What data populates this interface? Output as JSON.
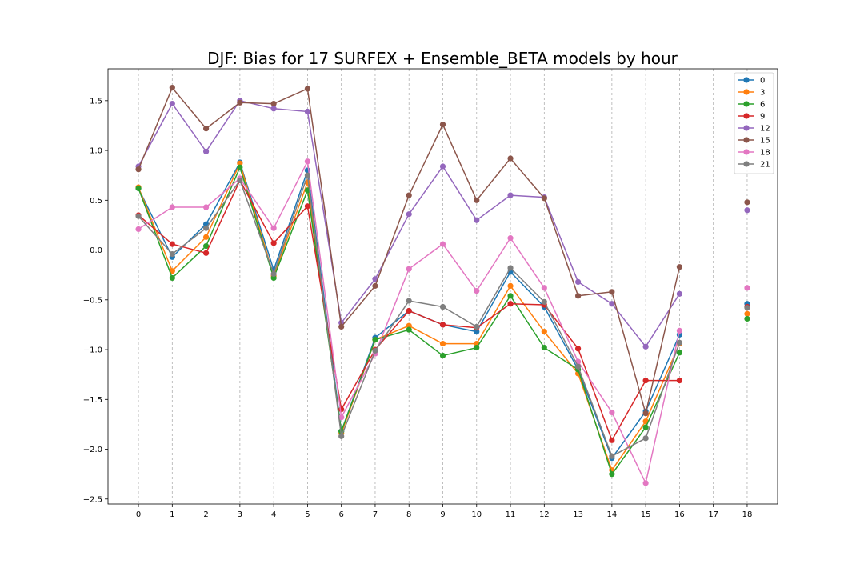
{
  "chart_data": {
    "type": "line",
    "title": "DJF: Bias for 17 SURFEX + Ensemble_BETA models by hour",
    "xlabel": "",
    "ylabel": "",
    "x": [
      0,
      1,
      2,
      3,
      4,
      5,
      6,
      7,
      8,
      9,
      10,
      11,
      12,
      13,
      14,
      15,
      16,
      17,
      18
    ],
    "x_ticks": [
      "0",
      "1",
      "2",
      "3",
      "4",
      "5",
      "6",
      "7",
      "8",
      "9",
      "10",
      "11",
      "12",
      "13",
      "14",
      "15",
      "16",
      "17",
      "18"
    ],
    "y_ticks": [
      "1.5",
      "1.0",
      "0.5",
      "0.0",
      "−0.5",
      "−1.0",
      "−1.5",
      "−2.0",
      "−2.5"
    ],
    "y_tick_values": [
      1.5,
      1.0,
      0.5,
      0.0,
      -0.5,
      -1.0,
      -1.5,
      -2.0,
      -2.5
    ],
    "xlim": [
      -0.9,
      18.9
    ],
    "ylim": [
      -2.55,
      1.82
    ],
    "grid": "vertical dashed",
    "legend_position": "top-right",
    "series": [
      {
        "name": "0",
        "color": "#1f77b4",
        "values": [
          0.62,
          -0.07,
          0.26,
          0.88,
          -0.2,
          0.8,
          -1.82,
          -0.88,
          -0.61,
          -0.75,
          -0.82,
          -0.22,
          -0.57,
          -1.2,
          -2.09,
          -1.62,
          -0.85,
          null,
          -0.54
        ]
      },
      {
        "name": "3",
        "color": "#ff7f0e",
        "values": [
          0.63,
          -0.21,
          0.13,
          0.87,
          -0.26,
          0.68,
          -1.84,
          -0.9,
          -0.76,
          -0.94,
          -0.94,
          -0.36,
          -0.82,
          -1.24,
          -2.21,
          -1.72,
          -0.94,
          null,
          -0.64
        ]
      },
      {
        "name": "6",
        "color": "#2ca02c",
        "values": [
          0.62,
          -0.28,
          0.04,
          0.83,
          -0.28,
          0.6,
          -1.82,
          -0.9,
          -0.8,
          -1.06,
          -0.98,
          -0.46,
          -0.98,
          -1.2,
          -2.25,
          -1.78,
          -1.03,
          null,
          -0.69
        ]
      },
      {
        "name": "9",
        "color": "#d62728",
        "values": [
          0.35,
          0.06,
          -0.03,
          0.7,
          0.07,
          0.44,
          -1.6,
          -1.0,
          -0.61,
          -0.75,
          -0.78,
          -0.54,
          -0.55,
          -0.99,
          -1.91,
          -1.31,
          -1.31,
          null,
          -0.57
        ]
      },
      {
        "name": "12",
        "color": "#9467bd",
        "values": [
          0.84,
          1.47,
          0.99,
          1.5,
          1.42,
          1.39,
          -0.73,
          -0.29,
          0.36,
          0.84,
          0.3,
          0.55,
          0.53,
          -0.32,
          -0.54,
          -0.97,
          -0.44,
          null,
          0.4
        ]
      },
      {
        "name": "15",
        "color": "#8c564b",
        "values": [
          0.81,
          1.63,
          1.22,
          1.48,
          1.47,
          1.62,
          -0.77,
          -0.36,
          0.55,
          1.26,
          0.5,
          0.92,
          0.52,
          -0.46,
          -0.42,
          -1.64,
          -0.17,
          null,
          0.48
        ]
      },
      {
        "name": "18",
        "color": "#e377c2",
        "values": [
          0.21,
          0.43,
          0.43,
          0.72,
          0.22,
          0.89,
          -1.68,
          -1.04,
          -0.19,
          0.06,
          -0.41,
          0.12,
          -0.38,
          -1.12,
          -1.63,
          -2.34,
          -0.81,
          null,
          -0.38
        ]
      },
      {
        "name": "21",
        "color": "#7f7f7f",
        "values": [
          0.34,
          -0.04,
          0.22,
          0.7,
          -0.24,
          0.75,
          -1.87,
          -1.01,
          -0.51,
          -0.57,
          -0.77,
          -0.18,
          -0.52,
          -1.17,
          -2.07,
          -1.89,
          -0.93,
          null,
          -0.58
        ]
      }
    ]
  }
}
